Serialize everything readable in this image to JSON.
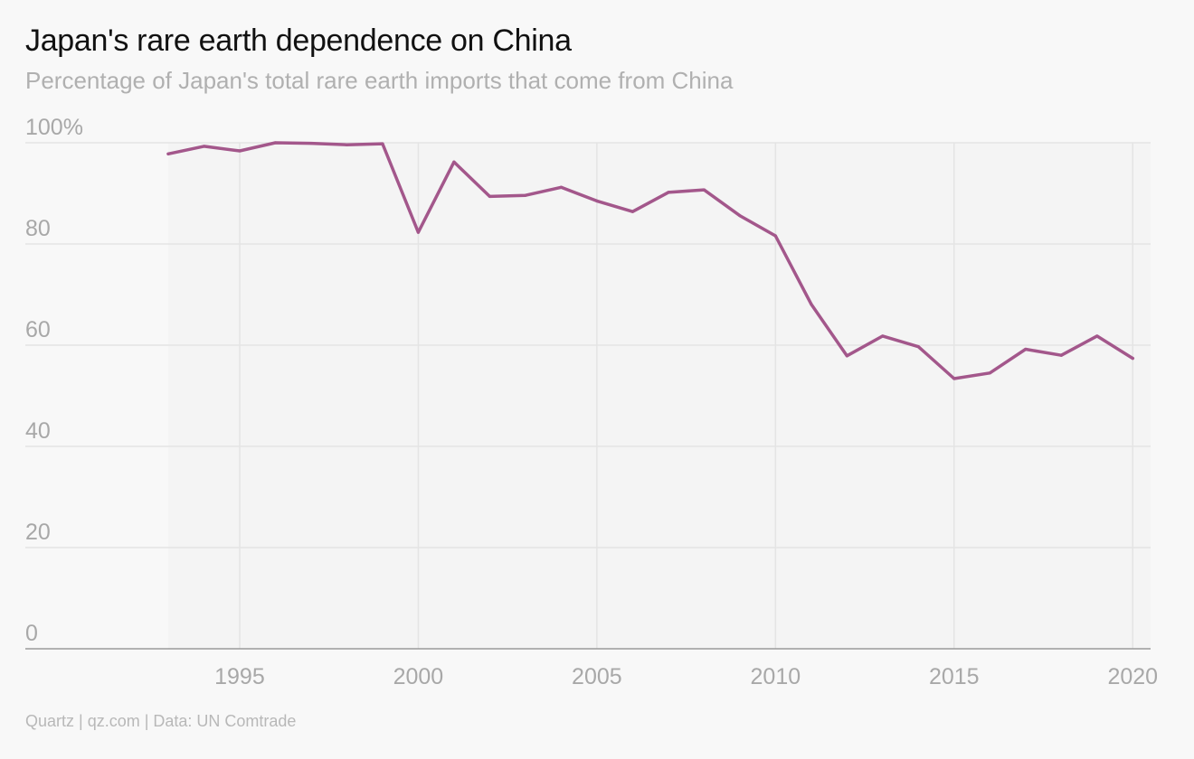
{
  "header": {
    "title": "Japan's rare earth dependence on China",
    "subtitle": "Percentage of Japan's total rare earth imports that come from China"
  },
  "footer": {
    "source": "Quartz | qz.com | Data: UN Comtrade"
  },
  "colors": {
    "line": "#a3578b",
    "grid": "#e4e4e4",
    "axis": "#9a9a9a",
    "tick_text": "#a8a8a8",
    "background": "#f8f8f8"
  },
  "chart_data": {
    "type": "line",
    "title": "Japan's rare earth dependence on China",
    "subtitle": "Percentage of Japan's total rare earth imports that come from China",
    "xlabel": "",
    "ylabel": "",
    "xlim": [
      1989,
      2020.5
    ],
    "ylim": [
      0,
      100
    ],
    "x_ticks": [
      1995,
      2000,
      2005,
      2010,
      2015,
      2020
    ],
    "x_tick_labels": [
      "1995",
      "2000",
      "2005",
      "2010",
      "2015",
      "2020"
    ],
    "y_ticks": [
      0,
      20,
      40,
      60,
      80,
      100
    ],
    "y_tick_labels": [
      "0",
      "20",
      "40",
      "60",
      "80",
      "100%"
    ],
    "grid": true,
    "legend": "none",
    "series": [
      {
        "x": [
          1993,
          1994,
          1995,
          1996,
          1997,
          1998,
          1999,
          2000,
          2001,
          2002,
          2003,
          2004,
          2005,
          2006,
          2007,
          2008,
          2009,
          2010,
          2011,
          2012,
          2013,
          2014,
          2015,
          2016,
          2017,
          2018,
          2019,
          2020
        ],
        "y": [
          97.8,
          99.3,
          98.4,
          100,
          99.9,
          99.6,
          99.8,
          82.3,
          96.2,
          89.4,
          89.6,
          91.2,
          88.5,
          86.4,
          90.2,
          90.7,
          85.6,
          81.6,
          68.1,
          57.9,
          61.8,
          59.7,
          53.4,
          54.5,
          59.2,
          58.0,
          61.8,
          57.4
        ]
      }
    ]
  }
}
